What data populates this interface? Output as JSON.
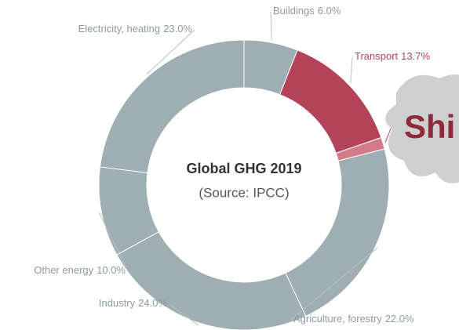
{
  "chart_data": {
    "type": "donut",
    "title": "Global GHG 2019",
    "subtitle": "(Source: IPCC)",
    "categories": [
      "Buildings",
      "Transport",
      "Shi",
      "Agriculture, forestry",
      "Industry",
      "Other energy",
      "Electricity, heating"
    ],
    "values": [
      6.0,
      13.7,
      1.3,
      22.0,
      24.0,
      10.0,
      23.0
    ],
    "value_labels": [
      "6.0%",
      "13.7%",
      null,
      "22.0%",
      "24.0%",
      "10.0%",
      "23.0%"
    ],
    "colors": [
      "#9eaeb2",
      "#b4435a",
      "#d27a88",
      "#9eaeb2",
      "#9eaeb2",
      "#9eaeb2",
      "#9eaeb2"
    ]
  }
}
